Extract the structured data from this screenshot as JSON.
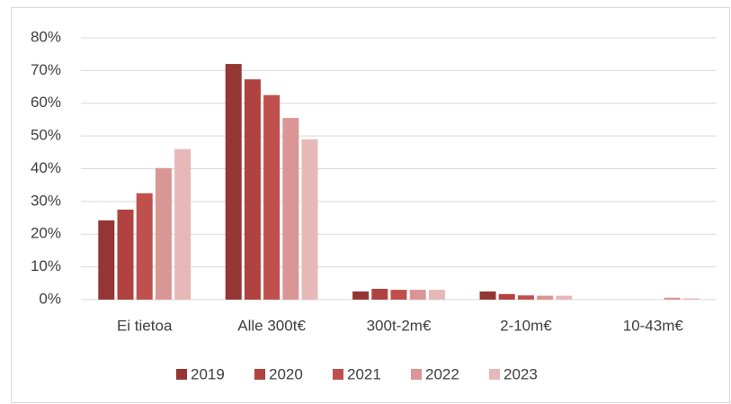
{
  "chart_data": {
    "type": "bar",
    "categories": [
      "Ei tietoa",
      "Alle 300t€",
      "300t-2m€",
      "2-10m€",
      "10-43m€"
    ],
    "series": [
      {
        "name": "2019",
        "color": "#943634",
        "values": [
          24.2,
          72,
          2.5,
          2.5,
          0
        ]
      },
      {
        "name": "2020",
        "color": "#b0423f",
        "values": [
          27.5,
          67.3,
          3.3,
          1.7,
          0
        ]
      },
      {
        "name": "2021",
        "color": "#c0504d",
        "values": [
          32.5,
          62.5,
          3,
          1.3,
          0
        ]
      },
      {
        "name": "2022",
        "color": "#d99694",
        "values": [
          40.2,
          55.5,
          3,
          1.2,
          0.6
        ]
      },
      {
        "name": "2023",
        "color": "#e6b9b8",
        "values": [
          46,
          49,
          3,
          1.2,
          0.4
        ]
      }
    ],
    "ylim": [
      0,
      80
    ],
    "yticks": [
      {
        "value": 0,
        "label": "0%"
      },
      {
        "value": 10,
        "label": "10%"
      },
      {
        "value": 20,
        "label": "20%"
      },
      {
        "value": 30,
        "label": "30%"
      },
      {
        "value": 40,
        "label": "40%"
      },
      {
        "value": 50,
        "label": "50%"
      },
      {
        "value": 60,
        "label": "60%"
      },
      {
        "value": 70,
        "label": "70%"
      },
      {
        "value": 80,
        "label": "80%"
      }
    ],
    "grid": true,
    "legend": "bottom"
  }
}
